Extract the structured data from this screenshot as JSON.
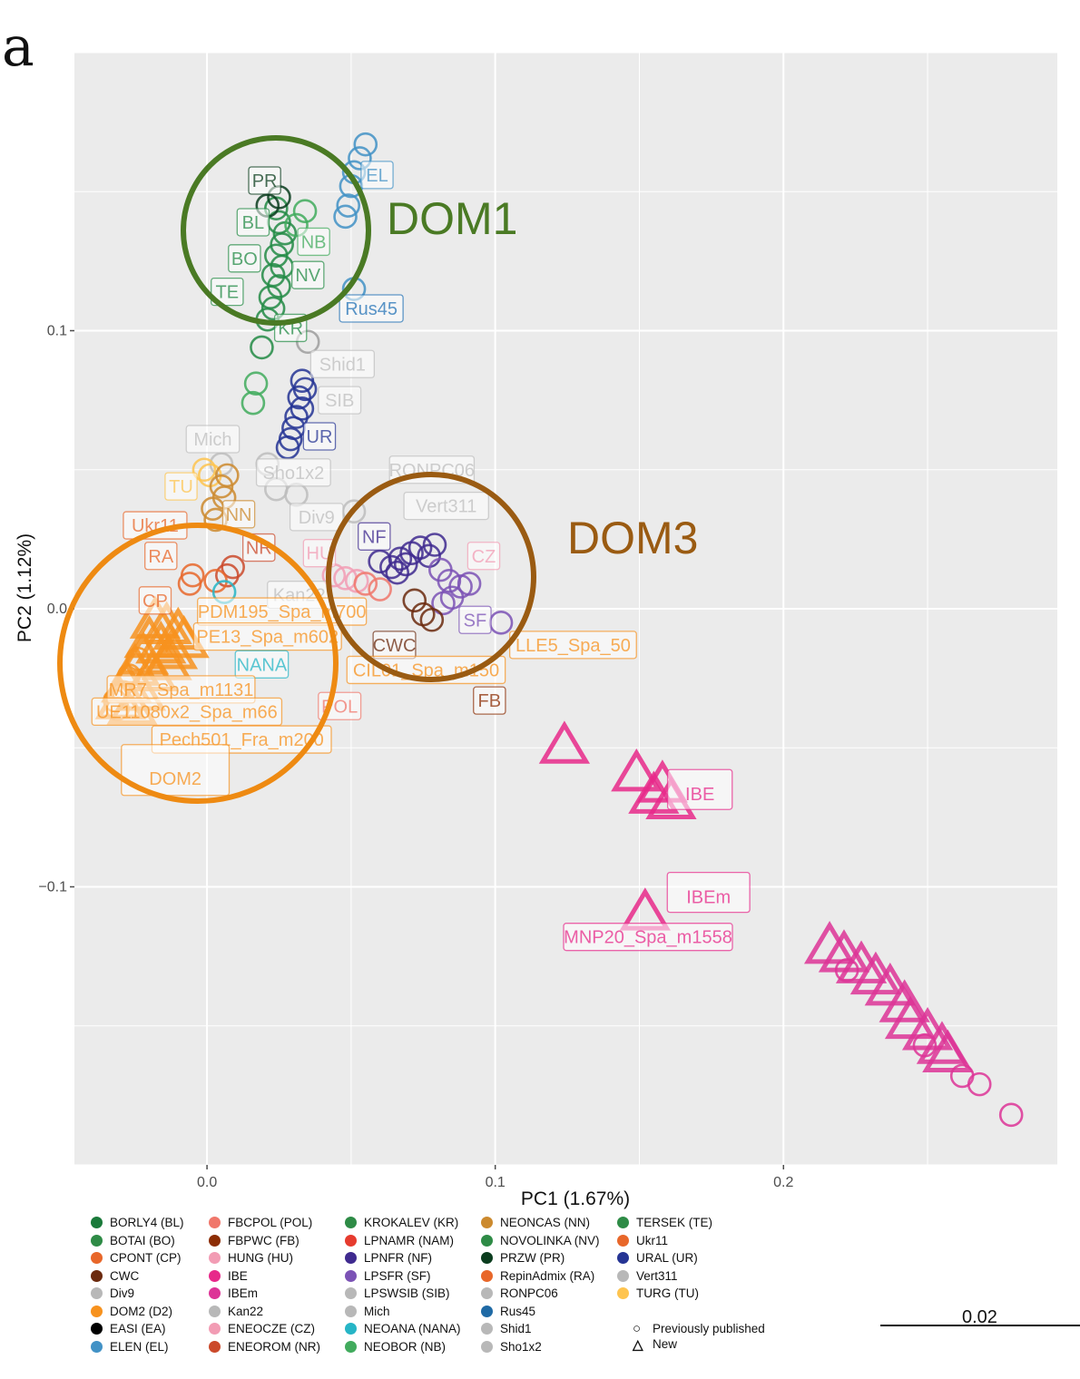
{
  "panel_label": "a",
  "chart_data": {
    "type": "scatter",
    "xlabel": "PC1 (1.67%)",
    "ylabel": "PC2 (1.12%)",
    "xlim": [
      -0.046,
      0.295
    ],
    "ylim": [
      -0.2,
      0.2
    ],
    "x_ticks": [
      0.0,
      0.1,
      0.2
    ],
    "x_tick_labels": [
      "0.0",
      "0.1",
      "0.2"
    ],
    "y_ticks": [
      -0.1,
      0.0,
      0.1
    ],
    "y_tick_labels": [
      "−0.1",
      "0.0",
      "0.1"
    ],
    "grid": true,
    "background": "#ebebeb",
    "series": [
      {
        "name": "ELEN (EL)",
        "shape": "circle",
        "color": "#4292c6",
        "points": [
          [
            0.055,
            0.167
          ],
          [
            0.053,
            0.162
          ],
          [
            0.051,
            0.157
          ],
          [
            0.05,
            0.152
          ],
          [
            0.049,
            0.145
          ],
          [
            0.048,
            0.141
          ],
          [
            0.051,
            0.115
          ]
        ]
      },
      {
        "name": "BOTAI (BO)",
        "shape": "circle",
        "color": "#238b45",
        "points": [
          [
            0.024,
            0.144
          ],
          [
            0.025,
            0.139
          ],
          [
            0.027,
            0.135
          ],
          [
            0.026,
            0.131
          ],
          [
            0.024,
            0.127
          ],
          [
            0.026,
            0.123
          ],
          [
            0.023,
            0.12
          ],
          [
            0.025,
            0.116
          ],
          [
            0.022,
            0.112
          ],
          [
            0.023,
            0.108
          ],
          [
            0.021,
            0.104
          ],
          [
            0.019,
            0.094
          ]
        ]
      },
      {
        "name": "NEOBOR (NB)",
        "shape": "circle",
        "color": "#41ab5d",
        "points": [
          [
            0.034,
            0.143
          ],
          [
            0.031,
            0.138
          ],
          [
            0.017,
            0.081
          ],
          [
            0.016,
            0.074
          ]
        ]
      },
      {
        "name": "PRZW (PR)",
        "shape": "circle",
        "color": "#0b3d1e",
        "points": [
          [
            0.021,
            0.145
          ],
          [
            0.025,
            0.148
          ]
        ]
      },
      {
        "name": "URAL (UR)",
        "shape": "circle",
        "color": "#253494",
        "points": [
          [
            0.033,
            0.082
          ],
          [
            0.034,
            0.079
          ],
          [
            0.032,
            0.076
          ],
          [
            0.033,
            0.072
          ],
          [
            0.031,
            0.069
          ],
          [
            0.03,
            0.065
          ],
          [
            0.029,
            0.061
          ],
          [
            0.028,
            0.058
          ]
        ]
      },
      {
        "name": "Shid1",
        "shape": "circle",
        "color": "#9e9e9e",
        "points": [
          [
            0.035,
            0.096
          ]
        ]
      },
      {
        "name": "Sho1x2",
        "shape": "circle",
        "color": "#bdbdbd",
        "points": [
          [
            0.021,
            0.052
          ],
          [
            0.024,
            0.043
          ],
          [
            0.031,
            0.041
          ]
        ]
      },
      {
        "name": "Vert311",
        "shape": "circle",
        "color": "#bdbdbd",
        "points": [
          [
            0.051,
            0.035
          ]
        ]
      },
      {
        "name": "Mich",
        "shape": "circle",
        "color": "#bdbdbd",
        "points": [
          [
            0.005,
            0.052
          ]
        ]
      },
      {
        "name": "TURG (TU)",
        "shape": "circle",
        "color": "#fec44f",
        "points": [
          [
            -0.001,
            0.05
          ],
          [
            0.001,
            0.048
          ]
        ]
      },
      {
        "name": "NEONCAS (NN)",
        "shape": "circle",
        "color": "#cc8a2e",
        "points": [
          [
            0.007,
            0.048
          ],
          [
            0.005,
            0.044
          ],
          [
            0.006,
            0.04
          ],
          [
            0.002,
            0.036
          ],
          [
            0.003,
            0.032
          ]
        ]
      },
      {
        "name": "ENEOROM (NR)",
        "shape": "circle",
        "color": "#cb4a2b",
        "points": [
          [
            0.009,
            0.015
          ],
          [
            0.007,
            0.012
          ]
        ]
      },
      {
        "name": "CPONT (CP)",
        "shape": "circle",
        "color": "#e8672a",
        "points": [
          [
            -0.005,
            0.012
          ],
          [
            -0.006,
            0.009
          ],
          [
            0.003,
            0.01
          ]
        ]
      },
      {
        "name": "NEOANA (NANA)",
        "shape": "circle",
        "color": "#26b5c6",
        "points": [
          [
            0.006,
            0.006
          ]
        ]
      },
      {
        "name": "HUNG (HU)",
        "shape": "circle",
        "color": "#f29cb4",
        "points": [
          [
            0.044,
            0.012
          ],
          [
            0.048,
            0.011
          ],
          [
            0.052,
            0.01
          ]
        ]
      },
      {
        "name": "FBCPOL (POL)",
        "shape": "circle",
        "color": "#f0776b",
        "points": [
          [
            0.055,
            0.009
          ],
          [
            0.06,
            0.007
          ]
        ]
      },
      {
        "name": "LPNFR (NF)",
        "shape": "circle",
        "color": "#3f2a8f",
        "points": [
          [
            0.06,
            0.017
          ],
          [
            0.064,
            0.015
          ],
          [
            0.067,
            0.018
          ],
          [
            0.069,
            0.016
          ],
          [
            0.071,
            0.02
          ],
          [
            0.074,
            0.022
          ],
          [
            0.077,
            0.019
          ],
          [
            0.079,
            0.023
          ],
          [
            0.066,
            0.013
          ]
        ]
      },
      {
        "name": "LPSFR (SF)",
        "shape": "circle",
        "color": "#7b52b5",
        "points": [
          [
            0.081,
            0.014
          ],
          [
            0.084,
            0.01
          ],
          [
            0.088,
            0.008
          ],
          [
            0.091,
            0.009
          ],
          [
            0.085,
            0.004
          ],
          [
            0.082,
            0.002
          ],
          [
            0.102,
            -0.005
          ]
        ]
      },
      {
        "name": "CWC",
        "shape": "circle",
        "color": "#6b2a0e",
        "points": [
          [
            0.072,
            0.003
          ],
          [
            0.075,
            -0.002
          ],
          [
            0.078,
            -0.004
          ]
        ]
      },
      {
        "name": "DOM2 (D2)",
        "shape": "triangle",
        "color": "#f7921e",
        "points": [
          [
            -0.018,
            -0.005
          ],
          [
            -0.014,
            -0.007
          ],
          [
            -0.01,
            -0.009
          ],
          [
            -0.02,
            -0.012
          ],
          [
            -0.016,
            -0.014
          ],
          [
            -0.022,
            -0.018
          ],
          [
            -0.012,
            -0.016
          ],
          [
            -0.025,
            -0.022
          ],
          [
            -0.019,
            -0.024
          ],
          [
            -0.028,
            -0.028
          ],
          [
            -0.023,
            -0.031
          ],
          [
            -0.03,
            -0.034
          ],
          [
            -0.026,
            -0.036
          ],
          [
            -0.014,
            -0.02
          ],
          [
            -0.008,
            -0.012
          ]
        ]
      },
      {
        "name": "DOM2 (D2)",
        "shape": "circle",
        "color": "#f7921e",
        "points": [
          [
            -0.032,
            -0.033
          ],
          [
            -0.031,
            -0.036
          ],
          [
            -0.029,
            -0.03
          ],
          [
            -0.027,
            -0.024
          ],
          [
            -0.024,
            -0.018
          ]
        ]
      },
      {
        "name": "IBE",
        "shape": "triangle",
        "color": "#e7298a",
        "points": [
          [
            0.124,
            -0.05
          ],
          [
            0.149,
            -0.06
          ],
          [
            0.158,
            -0.064
          ],
          [
            0.155,
            -0.068
          ],
          [
            0.161,
            -0.07
          ]
        ]
      },
      {
        "name": "IBEm",
        "shape": "triangle",
        "color": "#e7298a",
        "points": [
          [
            0.152,
            -0.11
          ]
        ]
      },
      {
        "name": "IBEm",
        "shape": "triangle",
        "color": "#dd3497",
        "points": [
          [
            0.216,
            -0.122
          ],
          [
            0.221,
            -0.125
          ],
          [
            0.227,
            -0.129
          ],
          [
            0.232,
            -0.133
          ],
          [
            0.237,
            -0.137
          ],
          [
            0.242,
            -0.143
          ],
          [
            0.244,
            -0.149
          ],
          [
            0.25,
            -0.153
          ],
          [
            0.255,
            -0.158
          ],
          [
            0.257,
            -0.161
          ]
        ]
      },
      {
        "name": "IBEm",
        "shape": "circle",
        "color": "#dd3497",
        "points": [
          [
            0.222,
            -0.13
          ],
          [
            0.249,
            -0.157
          ],
          [
            0.262,
            -0.168
          ],
          [
            0.268,
            -0.171
          ],
          [
            0.279,
            -0.182
          ]
        ]
      }
    ],
    "point_labels": [
      {
        "text": "EL",
        "x": 0.059,
        "y": 0.156,
        "color": "#4292c6"
      },
      {
        "text": "PR",
        "x": 0.02,
        "y": 0.154,
        "color": "#0b3d1e"
      },
      {
        "text": "BL",
        "x": 0.016,
        "y": 0.139,
        "color": "#238b45"
      },
      {
        "text": "NB",
        "x": 0.037,
        "y": 0.132,
        "color": "#41ab5d"
      },
      {
        "text": "BO",
        "x": 0.013,
        "y": 0.126,
        "color": "#238b45"
      },
      {
        "text": "NV",
        "x": 0.035,
        "y": 0.12,
        "color": "#238b45"
      },
      {
        "text": "TE",
        "x": 0.007,
        "y": 0.114,
        "color": "#238b45"
      },
      {
        "text": "Rus45",
        "x": 0.057,
        "y": 0.108,
        "color": "#2171b5"
      },
      {
        "text": "KR",
        "x": 0.029,
        "y": 0.101,
        "color": "#238b45"
      },
      {
        "text": "Shid1",
        "x": 0.047,
        "y": 0.088,
        "color": "#bdbdbd"
      },
      {
        "text": "SIB",
        "x": 0.046,
        "y": 0.075,
        "color": "#bdbdbd"
      },
      {
        "text": "Mich",
        "x": 0.002,
        "y": 0.061,
        "color": "#bdbdbd"
      },
      {
        "text": "UR",
        "x": 0.039,
        "y": 0.062,
        "color": "#253494"
      },
      {
        "text": "Sho1x2",
        "x": 0.03,
        "y": 0.049,
        "color": "#bdbdbd"
      },
      {
        "text": "RONPC06",
        "x": 0.078,
        "y": 0.05,
        "color": "#bdbdbd"
      },
      {
        "text": "TU",
        "x": -0.009,
        "y": 0.044,
        "color": "#fec44f"
      },
      {
        "text": "Vert311",
        "x": 0.083,
        "y": 0.037,
        "color": "#bdbdbd"
      },
      {
        "text": "NN",
        "x": 0.011,
        "y": 0.034,
        "color": "#cc8a2e"
      },
      {
        "text": "Div9",
        "x": 0.038,
        "y": 0.033,
        "color": "#bdbdbd"
      },
      {
        "text": "Ukr11",
        "x": -0.018,
        "y": 0.03,
        "color": "#e8672a"
      },
      {
        "text": "NF",
        "x": 0.058,
        "y": 0.026,
        "color": "#3f2a8f"
      },
      {
        "text": "NR",
        "x": 0.018,
        "y": 0.022,
        "color": "#cb4a2b"
      },
      {
        "text": "HU",
        "x": 0.039,
        "y": 0.02,
        "color": "#f29cb4"
      },
      {
        "text": "CZ",
        "x": 0.096,
        "y": 0.019,
        "color": "#f29cb4"
      },
      {
        "text": "RA",
        "x": -0.016,
        "y": 0.019,
        "color": "#e8672a"
      },
      {
        "text": "Kan22",
        "x": 0.032,
        "y": 0.005,
        "color": "#bdbdbd"
      },
      {
        "text": "CP",
        "x": -0.018,
        "y": 0.003,
        "color": "#e8672a"
      },
      {
        "text": "PDM195_Spa_m700",
        "x": 0.026,
        "y": -0.001,
        "color": "#f7921e"
      },
      {
        "text": "SF",
        "x": 0.093,
        "y": -0.004,
        "color": "#7b52b5"
      },
      {
        "text": "PE13_Spa_m602",
        "x": 0.021,
        "y": -0.01,
        "color": "#f7921e"
      },
      {
        "text": "CWC",
        "x": 0.065,
        "y": -0.013,
        "color": "#6b2a0e"
      },
      {
        "text": "LLE5_Spa_50",
        "x": 0.127,
        "y": -0.013,
        "color": "#f7921e"
      },
      {
        "text": "NANA",
        "x": 0.019,
        "y": -0.02,
        "color": "#26b5c6"
      },
      {
        "text": "CIL01_Spa_m150",
        "x": 0.076,
        "y": -0.022,
        "color": "#f7921e"
      },
      {
        "text": "MR7_Spa_m1131",
        "x": -0.009,
        "y": -0.029,
        "color": "#f7921e"
      },
      {
        "text": "FB",
        "x": 0.098,
        "y": -0.033,
        "color": "#8c2d04"
      },
      {
        "text": "POL",
        "x": 0.046,
        "y": -0.035,
        "color": "#f0776b"
      },
      {
        "text": "UE11080x2_Spa_m66",
        "x": -0.007,
        "y": -0.037,
        "color": "#f7921e"
      },
      {
        "text": "Pech501_Fra_m200",
        "x": 0.012,
        "y": -0.047,
        "color": "#f7921e"
      },
      {
        "text": "DOM2",
        "x": -0.011,
        "y": -0.058,
        "color": "#f7921e"
      },
      {
        "text": "IBE",
        "x": 0.171,
        "y": -0.065,
        "color": "#e7298a"
      },
      {
        "text": "IBEm",
        "x": 0.174,
        "y": -0.102,
        "color": "#e7298a"
      },
      {
        "text": "MNP20_Spa_m1558",
        "x": 0.153,
        "y": -0.118,
        "color": "#e7298a"
      }
    ],
    "annotations": [
      {
        "text": "DOM1",
        "color": "#4a7a24"
      },
      {
        "text": "DOM3",
        "color": "#9a5b12"
      }
    ],
    "legend_columns": [
      [
        {
          "label": "BORLY4 (BL)",
          "color": "#1a7a3a"
        },
        {
          "label": "BOTAI (BO)",
          "color": "#2e8b46"
        },
        {
          "label": "CPONT (CP)",
          "color": "#e8672a"
        },
        {
          "label": "CWC",
          "color": "#6b2a0e"
        },
        {
          "label": "Div9",
          "color": "#b8b8b8"
        },
        {
          "label": "DOM2 (D2)",
          "color": "#f7921e"
        },
        {
          "label": "EASI (EA)",
          "color": "#000000"
        },
        {
          "label": "ELEN (EL)",
          "color": "#4292c6"
        }
      ],
      [
        {
          "label": "FBCPOL (POL)",
          "color": "#f0776b"
        },
        {
          "label": "FBPWC (FB)",
          "color": "#8c2d04"
        },
        {
          "label": "HUNG (HU)",
          "color": "#f29cb4"
        },
        {
          "label": "IBE",
          "color": "#e7298a"
        },
        {
          "label": "IBEm",
          "color": "#dd3497"
        },
        {
          "label": "Kan22",
          "color": "#b8b8b8"
        },
        {
          "label": "ENEOCZE (CZ)",
          "color": "#f29cb4"
        },
        {
          "label": "ENEOROM (NR)",
          "color": "#cb4a2b"
        }
      ],
      [
        {
          "label": "KROKALEV (KR)",
          "color": "#2e8b46"
        },
        {
          "label": "LPNAMR (NAM)",
          "color": "#e63b2e"
        },
        {
          "label": "LPNFR (NF)",
          "color": "#3f2a8f"
        },
        {
          "label": "LPSFR (SF)",
          "color": "#7b52b5"
        },
        {
          "label": "LPSWSIB (SIB)",
          "color": "#b8b8b8"
        },
        {
          "label": "Mich",
          "color": "#b8b8b8"
        },
        {
          "label": "NEOANA (NANA)",
          "color": "#26b5c6"
        },
        {
          "label": "NEOBOR (NB)",
          "color": "#41ab5d"
        }
      ],
      [
        {
          "label": "NEONCAS (NN)",
          "color": "#cc8a2e"
        },
        {
          "label": "NOVOLINKA (NV)",
          "color": "#2e8b46"
        },
        {
          "label": "PRZW (PR)",
          "color": "#0b3d1e"
        },
        {
          "label": "RepinAdmix (RA)",
          "color": "#e8672a"
        },
        {
          "label": "RONPC06",
          "color": "#b8b8b8"
        },
        {
          "label": "Rus45",
          "color": "#1f6aa5"
        },
        {
          "label": "Shid1",
          "color": "#b8b8b8"
        },
        {
          "label": "Sho1x2",
          "color": "#b8b8b8"
        }
      ],
      [
        {
          "label": "TERSEK (TE)",
          "color": "#2e8b46"
        },
        {
          "label": "Ukr11",
          "color": "#e8672a"
        },
        {
          "label": "URAL (UR)",
          "color": "#253494"
        },
        {
          "label": "Vert311",
          "color": "#b8b8b8"
        },
        {
          "label": "TURG (TU)",
          "color": "#fec44f"
        }
      ]
    ],
    "shape_legend": [
      {
        "symbol": "○",
        "label": "Previously published"
      },
      {
        "symbol": "△",
        "label": "New"
      }
    ],
    "tree_scale_label": "0.02"
  }
}
